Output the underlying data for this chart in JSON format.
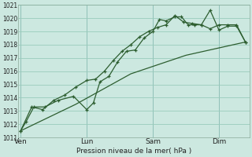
{
  "xlabel": "Pression niveau de la mer( hPa )",
  "ylim": [
    1011,
    1021
  ],
  "yticks": [
    1011,
    1012,
    1013,
    1014,
    1015,
    1016,
    1017,
    1018,
    1019,
    1020,
    1021
  ],
  "bg_color": "#cce8e0",
  "grid_color": "#99ccbb",
  "line_color": "#2d5e30",
  "day_labels": [
    "Ven",
    "Lun",
    "Sam",
    "Dim"
  ],
  "day_positions": [
    0,
    3,
    6,
    9
  ],
  "vline_color": "#556677",
  "series1": [
    [
      0.0,
      1011.5
    ],
    [
      0.25,
      1012.2
    ],
    [
      0.6,
      1013.3
    ],
    [
      1.1,
      1013.3
    ],
    [
      1.7,
      1013.8
    ],
    [
      2.4,
      1014.1
    ],
    [
      3.0,
      1013.1
    ],
    [
      3.3,
      1013.6
    ],
    [
      3.6,
      1015.2
    ],
    [
      4.0,
      1015.6
    ],
    [
      4.4,
      1016.7
    ],
    [
      4.8,
      1017.5
    ],
    [
      5.2,
      1017.6
    ],
    [
      5.6,
      1018.5
    ],
    [
      6.0,
      1019.0
    ],
    [
      6.3,
      1019.9
    ],
    [
      6.6,
      1019.8
    ],
    [
      7.0,
      1020.1
    ],
    [
      7.3,
      1020.1
    ],
    [
      7.6,
      1019.5
    ],
    [
      7.9,
      1019.5
    ],
    [
      8.2,
      1019.5
    ],
    [
      8.6,
      1020.6
    ],
    [
      9.0,
      1019.1
    ],
    [
      9.4,
      1019.4
    ],
    [
      9.8,
      1019.4
    ],
    [
      10.2,
      1018.2
    ]
  ],
  "series2": [
    [
      0.0,
      1011.5
    ],
    [
      0.5,
      1013.3
    ],
    [
      1.0,
      1013.1
    ],
    [
      1.5,
      1013.8
    ],
    [
      2.0,
      1014.2
    ],
    [
      2.5,
      1014.8
    ],
    [
      3.0,
      1015.3
    ],
    [
      3.4,
      1015.4
    ],
    [
      3.8,
      1016.0
    ],
    [
      4.2,
      1016.8
    ],
    [
      4.6,
      1017.5
    ],
    [
      5.0,
      1018.0
    ],
    [
      5.4,
      1018.6
    ],
    [
      5.8,
      1019.0
    ],
    [
      6.2,
      1019.3
    ],
    [
      6.6,
      1019.5
    ],
    [
      7.0,
      1020.2
    ],
    [
      7.4,
      1019.7
    ],
    [
      7.8,
      1019.6
    ],
    [
      8.2,
      1019.5
    ],
    [
      8.6,
      1019.2
    ],
    [
      9.0,
      1019.5
    ],
    [
      9.4,
      1019.5
    ],
    [
      9.8,
      1019.5
    ],
    [
      10.2,
      1018.2
    ]
  ],
  "series3": [
    [
      0.0,
      1011.5
    ],
    [
      2.5,
      1013.5
    ],
    [
      5.0,
      1015.8
    ],
    [
      7.5,
      1017.2
    ],
    [
      10.2,
      1018.2
    ]
  ],
  "xlim": [
    -0.1,
    10.4
  ]
}
